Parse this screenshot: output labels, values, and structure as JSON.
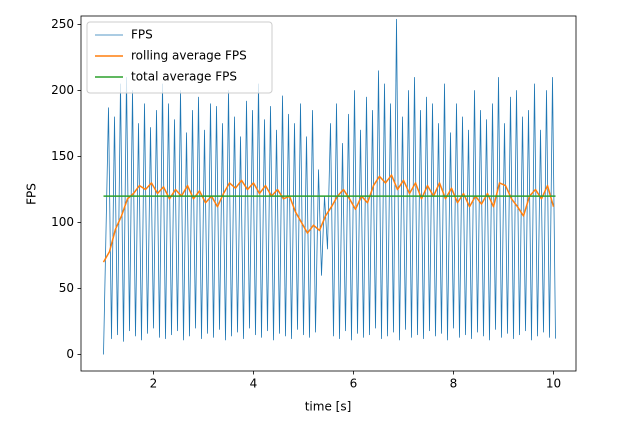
{
  "chart_data": {
    "type": "line",
    "xlabel": "time [s]",
    "ylabel": "FPS",
    "xlim": [
      0.55,
      10.45
    ],
    "ylim": [
      -12.5,
      256.5
    ],
    "xticks": [
      2,
      4,
      6,
      8,
      10
    ],
    "yticks": [
      0,
      50,
      100,
      150,
      200,
      250
    ],
    "legend": "upper left",
    "series": [
      {
        "name": "FPS",
        "color": "#1f77b4",
        "width": 0.8,
        "x": [
          1.0,
          1.1,
          1.16,
          1.22,
          1.28,
          1.34,
          1.4,
          1.46,
          1.52,
          1.58,
          1.64,
          1.7,
          1.76,
          1.82,
          1.88,
          1.94,
          2.0,
          2.06,
          2.12,
          2.18,
          2.24,
          2.3,
          2.36,
          2.42,
          2.48,
          2.54,
          2.6,
          2.66,
          2.72,
          2.78,
          2.84,
          2.9,
          2.96,
          3.02,
          3.08,
          3.14,
          3.2,
          3.26,
          3.32,
          3.38,
          3.44,
          3.5,
          3.56,
          3.62,
          3.68,
          3.74,
          3.8,
          3.86,
          3.92,
          3.98,
          4.04,
          4.1,
          4.16,
          4.22,
          4.28,
          4.34,
          4.4,
          4.46,
          4.52,
          4.58,
          4.64,
          4.7,
          4.76,
          4.82,
          4.88,
          4.94,
          5.0,
          5.06,
          5.12,
          5.18,
          5.24,
          5.3,
          5.36,
          5.42,
          5.48,
          5.54,
          5.6,
          5.66,
          5.72,
          5.78,
          5.84,
          5.9,
          5.96,
          6.02,
          6.08,
          6.14,
          6.2,
          6.26,
          6.32,
          6.38,
          6.44,
          6.5,
          6.56,
          6.62,
          6.68,
          6.74,
          6.8,
          6.86,
          6.92,
          6.98,
          7.04,
          7.1,
          7.16,
          7.22,
          7.28,
          7.34,
          7.4,
          7.46,
          7.52,
          7.58,
          7.64,
          7.7,
          7.76,
          7.82,
          7.88,
          7.94,
          8.0,
          8.06,
          8.12,
          8.18,
          8.24,
          8.3,
          8.36,
          8.42,
          8.48,
          8.54,
          8.6,
          8.66,
          8.72,
          8.78,
          8.84,
          8.9,
          8.96,
          9.02,
          9.08,
          9.14,
          9.2,
          9.26,
          9.32,
          9.38,
          9.44,
          9.5,
          9.56,
          9.62,
          9.68,
          9.74,
          9.8,
          9.86,
          9.92,
          9.98,
          10.04
        ],
        "values": [
          0,
          187,
          12,
          180,
          15,
          205,
          10,
          210,
          18,
          200,
          14,
          175,
          11,
          190,
          16,
          172,
          20,
          185,
          13,
          205,
          12,
          190,
          15,
          178,
          18,
          200,
          11,
          168,
          14,
          185,
          20,
          195,
          12,
          170,
          16,
          190,
          13,
          188,
          19,
          175,
          11,
          200,
          14,
          180,
          17,
          165,
          12,
          192,
          20,
          185,
          15,
          205,
          13,
          178,
          18,
          188,
          11,
          170,
          16,
          196,
          14,
          182,
          12,
          175,
          19,
          190,
          15,
          165,
          13,
          185,
          17,
          140,
          60,
          120,
          80,
          175,
          14,
          190,
          12,
          160,
          18,
          182,
          11,
          200,
          16,
          170,
          13,
          195,
          15,
          185,
          20,
          215,
          12,
          205,
          14,
          190,
          17,
          254,
          11,
          180,
          19,
          200,
          13,
          210,
          15,
          185,
          12,
          195,
          18,
          190,
          14,
          175,
          16,
          205,
          11,
          168,
          20,
          190,
          13,
          180,
          15,
          170,
          12,
          200,
          17,
          185,
          14,
          178,
          11,
          190,
          19,
          210,
          13,
          175,
          16,
          195,
          12,
          200,
          15,
          180,
          18,
          185,
          11,
          205,
          14,
          170,
          17,
          200,
          13,
          210,
          12
        ]
      },
      {
        "name": "rolling average FPS",
        "color": "#ff7f0e",
        "width": 1.5,
        "x": [
          1.0,
          1.12,
          1.24,
          1.36,
          1.48,
          1.6,
          1.72,
          1.84,
          1.96,
          2.08,
          2.2,
          2.32,
          2.44,
          2.56,
          2.68,
          2.8,
          2.92,
          3.04,
          3.16,
          3.28,
          3.4,
          3.52,
          3.64,
          3.76,
          3.88,
          4.0,
          4.12,
          4.24,
          4.36,
          4.48,
          4.6,
          4.72,
          4.84,
          4.96,
          5.08,
          5.2,
          5.32,
          5.44,
          5.56,
          5.68,
          5.8,
          5.92,
          6.04,
          6.16,
          6.28,
          6.4,
          6.52,
          6.64,
          6.76,
          6.88,
          7.0,
          7.12,
          7.24,
          7.36,
          7.48,
          7.6,
          7.72,
          7.84,
          7.96,
          8.08,
          8.2,
          8.32,
          8.44,
          8.56,
          8.68,
          8.8,
          8.92,
          9.04,
          9.16,
          9.28,
          9.4,
          9.52,
          9.64,
          9.76,
          9.88,
          10.0
        ],
        "values": [
          70,
          78,
          95,
          105,
          118,
          122,
          128,
          125,
          130,
          122,
          127,
          118,
          125,
          120,
          128,
          118,
          124,
          115,
          120,
          112,
          122,
          130,
          126,
          132,
          125,
          130,
          122,
          128,
          120,
          125,
          118,
          120,
          108,
          100,
          92,
          98,
          94,
          105,
          112,
          120,
          125,
          118,
          110,
          120,
          115,
          128,
          135,
          130,
          136,
          125,
          132,
          122,
          130,
          118,
          128,
          120,
          130,
          118,
          126,
          115,
          122,
          112,
          120,
          114,
          122,
          112,
          130,
          128,
          118,
          112,
          105,
          120,
          125,
          118,
          128,
          112
        ]
      },
      {
        "name": "total average FPS",
        "color": "#2ca02c",
        "width": 1.5,
        "x": [
          1.0,
          10.04
        ],
        "values": [
          120,
          120
        ]
      }
    ]
  }
}
